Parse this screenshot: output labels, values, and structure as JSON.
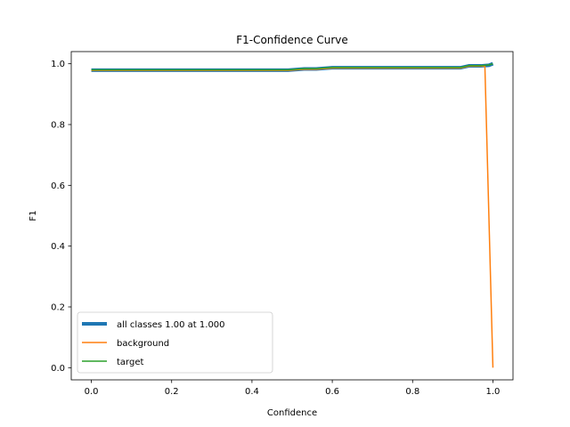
{
  "chart_data": {
    "type": "line",
    "title": "F1-Confidence Curve",
    "xlabel": "Confidence",
    "ylabel": "F1",
    "xlim": [
      -0.05,
      1.05
    ],
    "ylim": [
      -0.04,
      1.04
    ],
    "xticks": [
      0.0,
      0.2,
      0.4,
      0.6,
      0.8,
      1.0
    ],
    "xtick_labels": [
      "0.0",
      "0.2",
      "0.4",
      "0.6",
      "0.8",
      "1.0"
    ],
    "yticks": [
      0.0,
      0.2,
      0.4,
      0.6,
      0.8,
      1.0
    ],
    "ytick_labels": [
      "0.0",
      "0.2",
      "0.4",
      "0.6",
      "0.8",
      "1.0"
    ],
    "grid": false,
    "legend_position": "lower-left",
    "series": [
      {
        "name": "all classes 1.00 at 1.000",
        "color": "#1f77b4",
        "width": "thick",
        "x": [
          0.0,
          0.1,
          0.2,
          0.3,
          0.4,
          0.49,
          0.53,
          0.56,
          0.6,
          0.7,
          0.8,
          0.9,
          0.92,
          0.94,
          0.97,
          0.99,
          1.0
        ],
        "y": [
          0.979,
          0.979,
          0.979,
          0.979,
          0.979,
          0.979,
          0.983,
          0.983,
          0.987,
          0.987,
          0.987,
          0.987,
          0.987,
          0.993,
          0.993,
          0.995,
          1.0
        ]
      },
      {
        "name": "background",
        "color": "#ff7f0e",
        "width": "thin",
        "x": [
          0.0,
          0.1,
          0.2,
          0.3,
          0.4,
          0.49,
          0.53,
          0.56,
          0.6,
          0.7,
          0.8,
          0.9,
          0.92,
          0.94,
          0.97,
          0.98,
          1.0
        ],
        "y": [
          0.978,
          0.978,
          0.978,
          0.978,
          0.978,
          0.978,
          0.982,
          0.982,
          0.986,
          0.986,
          0.986,
          0.986,
          0.986,
          0.992,
          0.992,
          0.992,
          0.0
        ]
      },
      {
        "name": "target",
        "color": "#2ca02c",
        "width": "thin",
        "x": [
          0.0,
          0.1,
          0.2,
          0.3,
          0.4,
          0.49,
          0.53,
          0.56,
          0.6,
          0.7,
          0.8,
          0.9,
          0.92,
          0.94,
          0.97,
          0.99,
          1.0
        ],
        "y": [
          0.98,
          0.98,
          0.98,
          0.98,
          0.98,
          0.98,
          0.984,
          0.984,
          0.988,
          0.988,
          0.988,
          0.988,
          0.988,
          0.994,
          0.994,
          0.996,
          1.0
        ]
      }
    ]
  }
}
